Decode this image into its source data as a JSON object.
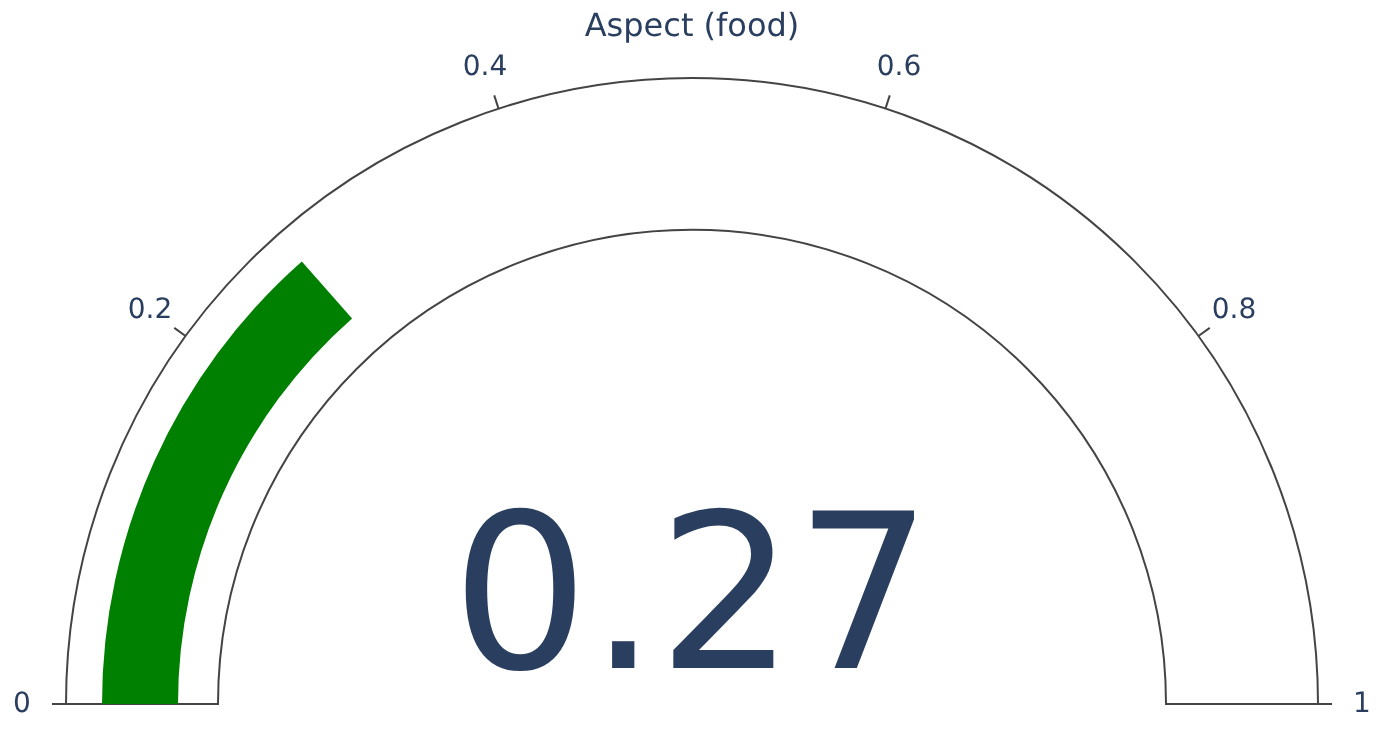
{
  "chart_data": {
    "type": "other",
    "title": "Aspect (food)",
    "values": [
      0.27
    ],
    "colors": [
      "#008000"
    ],
    "data_labels": true,
    "annotations": [
      "0",
      "0.2",
      "0.4",
      "0.6",
      "0.8",
      "1"
    ]
  }
}
